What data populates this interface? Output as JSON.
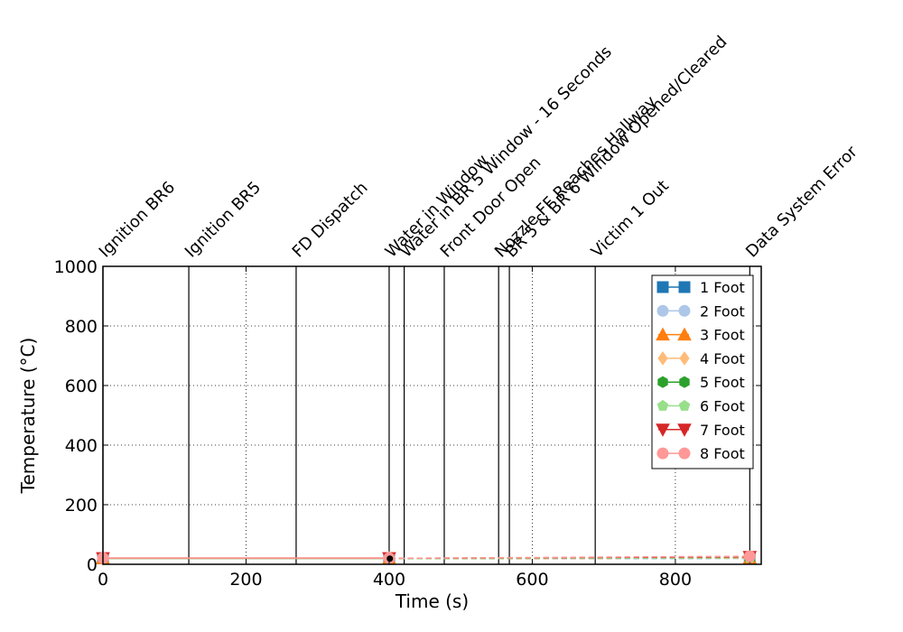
{
  "chart_data": {
    "type": "line",
    "title": "",
    "xlabel": "Time (s)",
    "ylabel": "Temperature (°C)",
    "xlim": [
      0,
      920
    ],
    "ylim": [
      0,
      1000
    ],
    "x_ticks": [
      0,
      200,
      400,
      600,
      800
    ],
    "y_ticks": [
      0,
      200,
      400,
      600,
      800,
      1000
    ],
    "grid": true,
    "legend_position": "top-right",
    "events": [
      {
        "time": 0,
        "label": "Ignition BR6"
      },
      {
        "time": 120,
        "label": "Ignition BR5"
      },
      {
        "time": 270,
        "label": "FD Dispatch"
      },
      {
        "time": 400,
        "label": "Water in Window"
      },
      {
        "time": 421,
        "label": "Water in BR 5 Window - 16 Seconds"
      },
      {
        "time": 477,
        "label": "Front Door Open"
      },
      {
        "time": 553,
        "label": "Nozzle FF Reaches Hallway"
      },
      {
        "time": 568,
        "label": "BR 5 & BR 6 Window Opened/Cleared"
      },
      {
        "time": 688,
        "label": "Victim 1 Out"
      },
      {
        "time": 904,
        "label": "Data System Error"
      }
    ],
    "series": [
      {
        "name": "1 Foot",
        "color": "#1f77b4",
        "marker": "square",
        "x": [
          0,
          400,
          401,
          904
        ],
        "y": [
          20,
          20,
          19,
          20
        ]
      },
      {
        "name": "2 Foot",
        "color": "#aec7e8",
        "marker": "circle",
        "x": [
          0,
          400,
          401,
          904
        ],
        "y": [
          20,
          20,
          19,
          20
        ]
      },
      {
        "name": "3 Foot",
        "color": "#ff7f0e",
        "marker": "triangle-up",
        "x": [
          0,
          400,
          401,
          904
        ],
        "y": [
          20,
          20,
          19,
          21
        ]
      },
      {
        "name": "4 Foot",
        "color": "#ffbb78",
        "marker": "diamond",
        "x": [
          0,
          400,
          401,
          904
        ],
        "y": [
          20,
          20,
          19,
          21
        ]
      },
      {
        "name": "5 Foot",
        "color": "#2ca02c",
        "marker": "hexagon",
        "x": [
          0,
          400,
          401,
          904
        ],
        "y": [
          20,
          20,
          19,
          22
        ]
      },
      {
        "name": "6 Foot",
        "color": "#98df8a",
        "marker": "pentagon",
        "x": [
          0,
          400,
          401,
          904
        ],
        "y": [
          20,
          20,
          19,
          22
        ]
      },
      {
        "name": "7 Foot",
        "color": "#d62728",
        "marker": "triangle-down",
        "x": [
          0,
          400,
          401,
          904
        ],
        "y": [
          21,
          21,
          20,
          25
        ]
      },
      {
        "name": "8 Foot",
        "color": "#ff9896",
        "marker": "circle",
        "x": [
          0,
          400,
          401,
          904
        ],
        "y": [
          21,
          21,
          20,
          27
        ]
      }
    ]
  }
}
